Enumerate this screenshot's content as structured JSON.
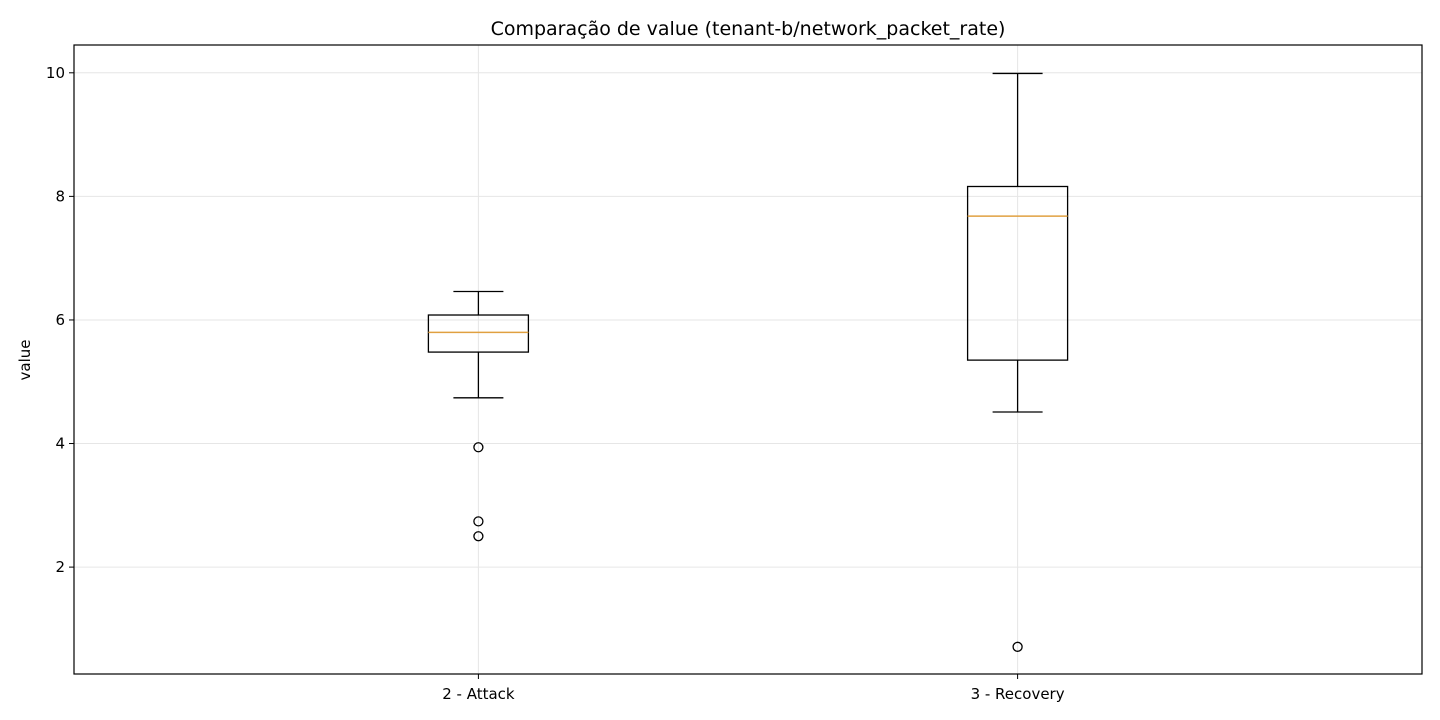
{
  "chart_data": {
    "type": "box",
    "title": "Comparação de value (tenant-b/network_packet_rate)",
    "xlabel": "",
    "ylabel": "value",
    "ylim": [
      0.27,
      10.45
    ],
    "yticks": [
      2,
      4,
      6,
      8,
      10
    ],
    "grid": true,
    "categories": [
      "2 - Attack",
      "3 - Recovery"
    ],
    "boxes": [
      {
        "category": "2 - Attack",
        "whisker_low": 4.74,
        "q1": 5.48,
        "median": 5.8,
        "q3": 6.08,
        "whisker_high": 6.46,
        "outliers": [
          3.94,
          2.74,
          2.5
        ]
      },
      {
        "category": "3 - Recovery",
        "whisker_low": 4.51,
        "q1": 5.35,
        "median": 7.68,
        "q3": 8.16,
        "whisker_high": 9.99,
        "outliers": [
          0.71
        ]
      }
    ],
    "colors": {
      "box": "#000000",
      "median": "#e0a040",
      "grid": "#e6e6e6",
      "outlier": "#000000"
    }
  }
}
